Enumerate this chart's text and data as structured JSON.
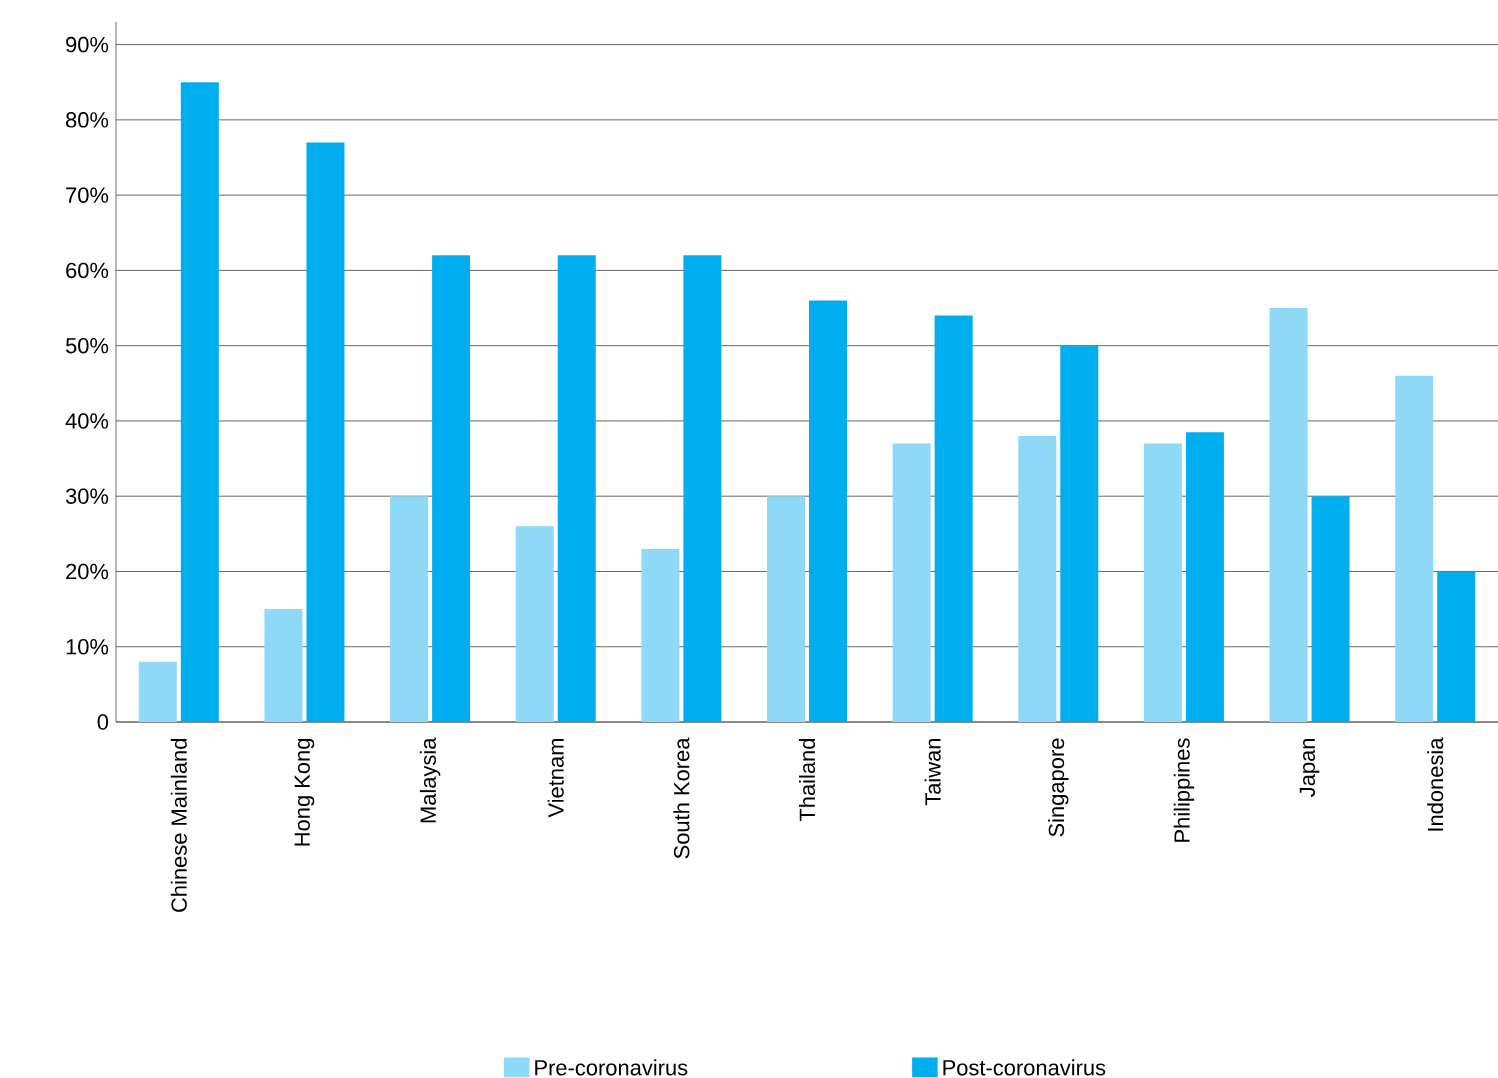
{
  "chart_data": {
    "type": "bar",
    "categories": [
      "Chinese Mainland",
      "Hong Kong",
      "Malaysia",
      "Vietnam",
      "South Korea",
      "Thailand",
      "Taiwan",
      "Singapore",
      "Philippines",
      "Japan",
      "Indonesia"
    ],
    "series": [
      {
        "name": "Pre-coronavirus",
        "color": "#8ed8f8",
        "values": [
          8,
          15,
          30,
          26,
          23,
          30,
          37,
          38,
          37,
          55,
          46
        ]
      },
      {
        "name": "Post-coronavirus",
        "color": "#00aeef",
        "values": [
          85,
          77,
          62,
          62,
          62,
          56,
          54,
          50,
          38.5,
          30,
          20
        ]
      }
    ],
    "ylim": [
      0,
      93
    ],
    "yticks": [
      {
        "value": 0,
        "label": "0"
      },
      {
        "value": 10,
        "label": "10%"
      },
      {
        "value": 20,
        "label": "20%"
      },
      {
        "value": 30,
        "label": "30%"
      },
      {
        "value": 40,
        "label": "40%"
      },
      {
        "value": 50,
        "label": "50%"
      },
      {
        "value": 60,
        "label": "60%"
      },
      {
        "value": 70,
        "label": "70%"
      },
      {
        "value": 80,
        "label": "80%"
      },
      {
        "value": 90,
        "label": "90%"
      }
    ],
    "grid": "y",
    "legend": "bottom"
  }
}
